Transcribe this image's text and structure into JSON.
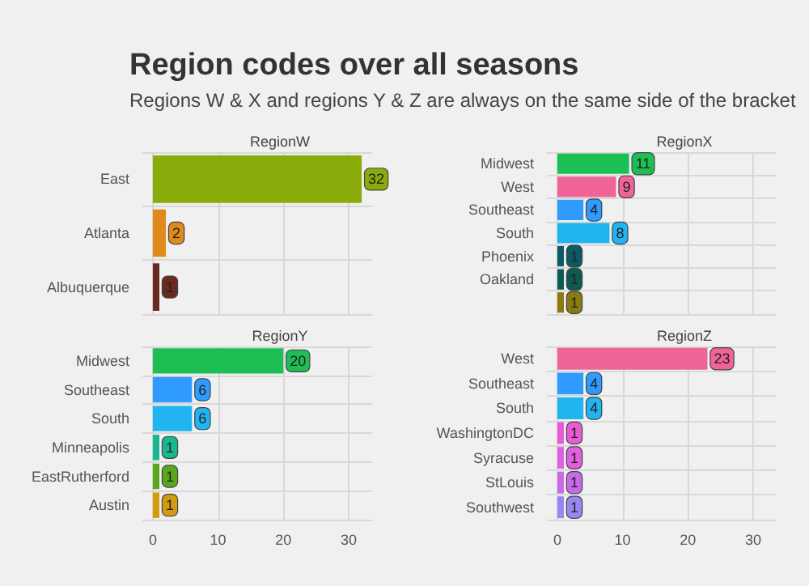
{
  "chart_data": [
    {
      "type": "other",
      "title": "Region codes over all seasons",
      "subtitle": "Regions W & X and regions Y & Z are always on the same side of the bracket"
    },
    {
      "type": "bar",
      "title": "RegionW",
      "orientation": "horizontal",
      "categories": [
        "East",
        "Atlanta",
        "Albuquerque"
      ],
      "values": [
        32,
        2,
        1
      ],
      "colors": [
        "#8aac0a",
        "#e08a1e",
        "#6b2a1e"
      ],
      "xlim": [
        -1.6,
        33.6
      ],
      "xticks": [
        0,
        10,
        20,
        30
      ],
      "tick_labels": "y",
      "grid": true,
      "data_labels": true
    },
    {
      "type": "bar",
      "title": "RegionX",
      "orientation": "horizontal",
      "categories": [
        "Midwest",
        "West",
        "Southeast",
        "South",
        "Phoenix",
        "Oakland",
        null
      ],
      "values": [
        11,
        9,
        4,
        8,
        1,
        1,
        1
      ],
      "colors": [
        "#1dbf55",
        "#f0649a",
        "#2f9bff",
        "#20b5f0",
        "#0b5a66",
        "#0f5a50",
        "#8a7a10"
      ],
      "xlim": [
        -1.6,
        33.6
      ],
      "xticks": [
        0,
        10,
        20,
        30
      ],
      "tick_labels": "y",
      "grid": true,
      "data_labels": true
    },
    {
      "type": "bar",
      "title": "RegionY",
      "orientation": "horizontal",
      "categories": [
        "Midwest",
        "Southeast",
        "South",
        "Minneapolis",
        "EastRutherford",
        "Austin"
      ],
      "values": [
        20,
        6,
        6,
        1,
        1,
        1
      ],
      "colors": [
        "#1dbf55",
        "#2f9bff",
        "#20b5f0",
        "#17b890",
        "#5aa81a",
        "#d49a10"
      ],
      "xlim": [
        -1.6,
        33.6
      ],
      "xticks": [
        0,
        10,
        20,
        30
      ],
      "grid": true,
      "data_labels": true
    },
    {
      "type": "bar",
      "title": "RegionZ",
      "orientation": "horizontal",
      "categories": [
        "West",
        "Southeast",
        "South",
        "WashingtonDC",
        "Syracuse",
        "StLouis",
        "Southwest"
      ],
      "values": [
        23,
        4,
        4,
        1,
        1,
        1,
        1
      ],
      "colors": [
        "#f0649a",
        "#2f9bff",
        "#20b5f0",
        "#e85ad6",
        "#e060e0",
        "#c86ae8",
        "#9a86f0"
      ],
      "xlim": [
        -1.6,
        33.6
      ],
      "xticks": [
        0,
        10,
        20,
        30
      ],
      "grid": true,
      "data_labels": true
    }
  ]
}
